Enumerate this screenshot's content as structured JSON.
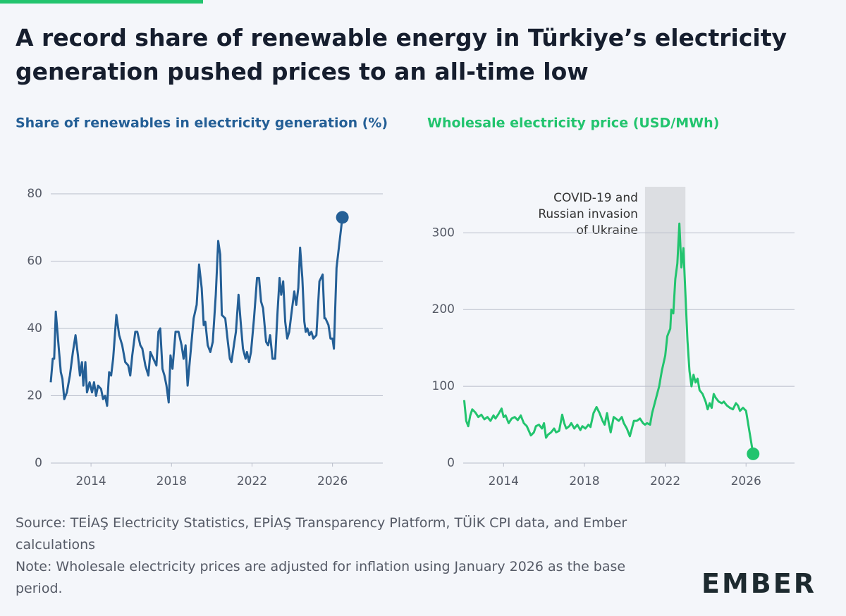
{
  "title": "A record share of renewable energy in Türkiye’s electricity generation pushed prices to an all-time low",
  "chart_data": [
    {
      "type": "line",
      "title": "Share of renewables in electricity generation (%)",
      "color": "#245f96",
      "x": [
        2012.0,
        2012.1,
        2012.17,
        2012.25,
        2012.4,
        2012.5,
        2012.58,
        2012.67,
        2012.8,
        2012.95,
        2013.1,
        2013.23,
        2013.35,
        2013.45,
        2013.55,
        2013.62,
        2013.72,
        2013.8,
        2013.93,
        2014.05,
        2014.15,
        2014.25,
        2014.35,
        2014.5,
        2014.6,
        2014.7,
        2014.8,
        2014.9,
        2015.0,
        2015.1,
        2015.26,
        2015.4,
        2015.55,
        2015.7,
        2015.85,
        2015.95,
        2016.05,
        2016.2,
        2016.3,
        2016.45,
        2016.55,
        2016.7,
        2016.85,
        2016.95,
        2017.1,
        2017.25,
        2017.35,
        2017.44,
        2017.55,
        2017.65,
        2017.75,
        2017.86,
        2017.95,
        2018.05,
        2018.2,
        2018.35,
        2018.5,
        2018.6,
        2018.7,
        2018.8,
        2018.95,
        2019.1,
        2019.25,
        2019.37,
        2019.5,
        2019.6,
        2019.68,
        2019.8,
        2019.93,
        2020.05,
        2020.2,
        2020.32,
        2020.42,
        2020.5,
        2020.67,
        2020.8,
        2020.9,
        2020.98,
        2021.1,
        2021.2,
        2021.33,
        2021.45,
        2021.55,
        2021.68,
        2021.75,
        2021.85,
        2021.95,
        2022.1,
        2022.25,
        2022.35,
        2022.45,
        2022.55,
        2022.7,
        2022.8,
        2022.9,
        2023.02,
        2023.15,
        2023.27,
        2023.37,
        2023.45,
        2023.55,
        2023.65,
        2023.75,
        2023.85,
        2023.95,
        2024.1,
        2024.2,
        2024.3,
        2024.39,
        2024.5,
        2024.6,
        2024.67,
        2024.75,
        2024.85,
        2024.95,
        2025.05,
        2025.2,
        2025.35,
        2025.51,
        2025.6,
        2025.65,
        2025.8,
        2025.9,
        2026.0,
        2026.07,
        2026.2,
        2026.49
      ],
      "values": [
        24,
        31,
        31,
        45,
        34,
        27,
        25,
        19,
        21,
        26,
        33,
        38,
        32,
        26,
        30,
        23,
        30,
        21,
        24,
        21,
        24,
        20,
        23,
        22,
        19,
        20,
        17,
        27,
        26,
        31,
        44,
        38,
        35,
        30,
        29,
        26,
        32,
        39,
        39,
        35,
        34,
        29,
        26,
        33,
        31,
        29,
        39,
        40,
        28,
        26,
        23,
        18,
        32,
        28,
        39,
        39,
        35,
        31,
        35,
        23,
        33,
        43,
        47,
        59,
        52,
        41,
        42,
        35,
        33,
        36,
        50,
        66,
        62,
        44,
        43,
        36,
        31,
        30,
        35,
        39,
        50,
        41,
        34,
        31,
        33,
        30,
        33,
        43,
        55,
        55,
        48,
        46,
        36,
        35,
        38,
        31,
        31,
        45,
        55,
        50,
        54,
        42,
        37,
        39,
        44,
        51,
        47,
        52,
        64,
        55,
        42,
        39,
        40,
        38,
        39,
        37,
        38,
        54,
        56,
        43,
        43,
        41,
        37,
        37,
        34,
        58,
        73
      ],
      "xlim": [
        2012,
        2028.5
      ],
      "ylim": [
        0,
        80
      ],
      "xticks": [
        2014,
        2018,
        2022,
        2026
      ],
      "yticks": [
        0,
        20,
        40,
        60,
        80
      ],
      "grid": true,
      "end_marker": true
    },
    {
      "type": "line",
      "title": "Wholesale electricity price (USD/MWh)",
      "color": "#22c46e",
      "x": [
        2012.05,
        2012.15,
        2012.25,
        2012.35,
        2012.45,
        2012.6,
        2012.75,
        2012.9,
        2013.05,
        2013.2,
        2013.35,
        2013.5,
        2013.6,
        2013.75,
        2013.9,
        2014.0,
        2014.1,
        2014.25,
        2014.4,
        2014.55,
        2014.7,
        2014.85,
        2015.0,
        2015.15,
        2015.25,
        2015.35,
        2015.5,
        2015.6,
        2015.75,
        2015.9,
        2016.0,
        2016.1,
        2016.2,
        2016.35,
        2016.5,
        2016.6,
        2016.75,
        2016.9,
        2017.0,
        2017.1,
        2017.25,
        2017.35,
        2017.5,
        2017.65,
        2017.8,
        2017.9,
        2018.05,
        2018.2,
        2018.3,
        2018.45,
        2018.6,
        2018.75,
        2018.9,
        2019.0,
        2019.12,
        2019.2,
        2019.3,
        2019.45,
        2019.55,
        2019.7,
        2019.85,
        2019.95,
        2020.1,
        2020.25,
        2020.35,
        2020.45,
        2020.6,
        2020.75,
        2020.9,
        2021.0,
        2021.1,
        2021.25,
        2021.35,
        2021.5,
        2021.6,
        2021.7,
        2021.83,
        2022.0,
        2022.1,
        2022.17,
        2022.25,
        2022.3,
        2022.4,
        2022.5,
        2022.6,
        2022.7,
        2022.8,
        2022.9,
        2023.0,
        2023.1,
        2023.2,
        2023.3,
        2023.4,
        2023.5,
        2023.6,
        2023.7,
        2023.85,
        2024.0,
        2024.1,
        2024.2,
        2024.3,
        2024.4,
        2024.5,
        2024.65,
        2024.8,
        2024.9,
        2025.05,
        2025.2,
        2025.35,
        2025.5,
        2025.6,
        2025.7,
        2025.85,
        2026.0,
        2026.35
      ],
      "values": [
        82,
        55,
        48,
        62,
        70,
        66,
        60,
        63,
        57,
        60,
        55,
        62,
        58,
        64,
        71,
        60,
        62,
        52,
        58,
        60,
        56,
        62,
        52,
        48,
        42,
        36,
        40,
        48,
        50,
        45,
        52,
        33,
        37,
        40,
        45,
        40,
        42,
        63,
        52,
        45,
        48,
        52,
        45,
        50,
        43,
        48,
        45,
        50,
        47,
        65,
        73,
        65,
        55,
        50,
        65,
        53,
        40,
        60,
        58,
        55,
        60,
        52,
        45,
        35,
        45,
        55,
        55,
        58,
        52,
        50,
        52,
        50,
        65,
        80,
        90,
        100,
        120,
        140,
        165,
        170,
        175,
        200,
        195,
        240,
        260,
        312,
        255,
        280,
        220,
        160,
        120,
        100,
        115,
        105,
        110,
        95,
        90,
        80,
        70,
        78,
        72,
        90,
        85,
        80,
        78,
        80,
        75,
        72,
        70,
        78,
        75,
        68,
        72,
        68,
        12
      ],
      "xlim": [
        2012,
        2028.4
      ],
      "ylim": [
        0,
        360
      ],
      "xticks": [
        2014,
        2018,
        2022,
        2026
      ],
      "yticks": [
        0,
        100,
        200,
        300
      ],
      "grid": true,
      "end_marker": true,
      "shaded_region": {
        "x": [
          2021,
          2023
        ],
        "label": [
          "COVID-19 and",
          "Russian invasion",
          "of Ukraine"
        ]
      }
    }
  ],
  "source": "Source: TEİAŞ Electricity Statistics, EPİAŞ Transparency Platform, TÜİK CPI data, and Ember calculations",
  "note": "Note: Wholesale electricity prices are adjusted for inflation using January 2026 as the base period.",
  "logo": "EMBER"
}
